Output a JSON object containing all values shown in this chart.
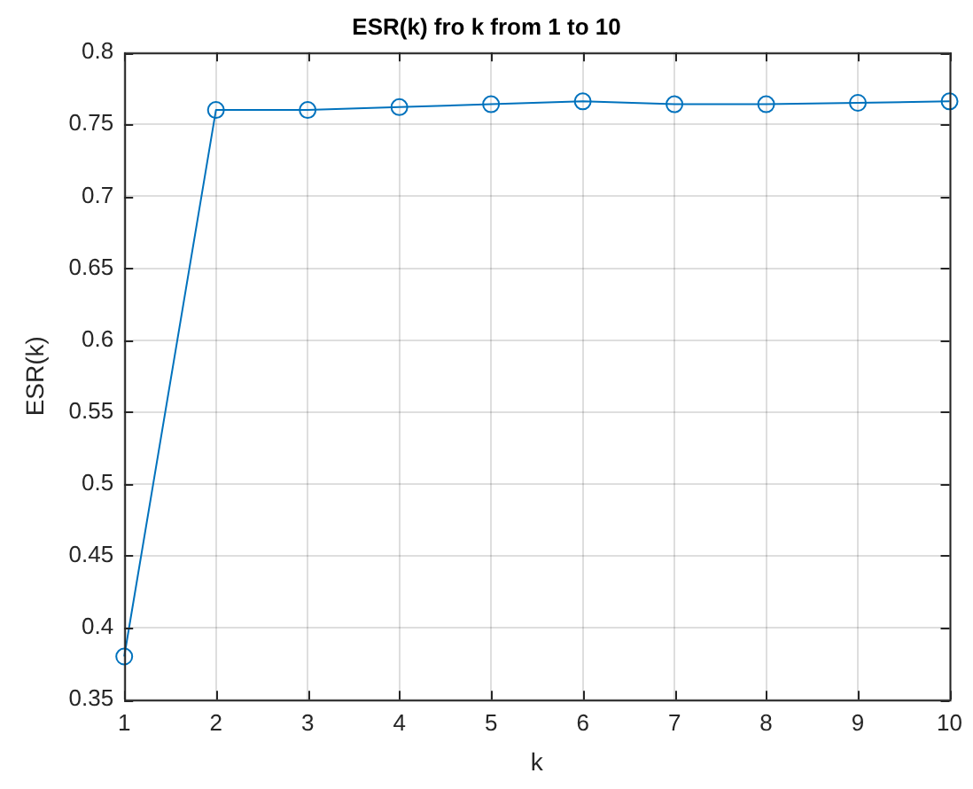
{
  "chart_data": {
    "type": "line",
    "title": "ESR(k) fro k from 1 to 10",
    "xlabel": "k",
    "ylabel": "ESR(k)",
    "x": [
      1,
      2,
      3,
      4,
      5,
      6,
      7,
      8,
      9,
      10
    ],
    "series": [
      {
        "color": "#0072bd",
        "values": [
          0.38,
          0.76,
          0.76,
          0.762,
          0.764,
          0.766,
          0.764,
          0.764,
          0.765,
          0.766
        ]
      }
    ],
    "xlim": [
      1,
      10
    ],
    "xticks": [
      1,
      2,
      3,
      4,
      5,
      6,
      7,
      8,
      9,
      10
    ],
    "ylim": [
      0.35,
      0.8
    ],
    "yticks": [
      0.35,
      0.4,
      0.45,
      0.5,
      0.55,
      0.6,
      0.65,
      0.7,
      0.75,
      0.8
    ],
    "grid": true,
    "marker": "circle",
    "line_style": "solid",
    "legend": false
  }
}
